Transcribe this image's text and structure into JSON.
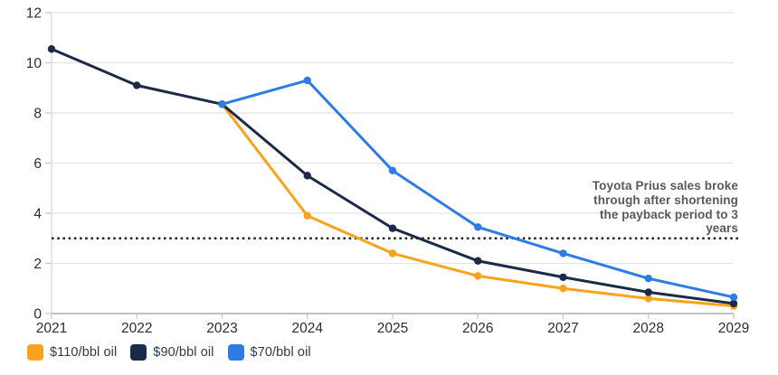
{
  "chart_data": {
    "type": "line",
    "title": "",
    "xlabel": "",
    "ylabel": "",
    "categories": [
      "2021",
      "2022",
      "2023",
      "2024",
      "2025",
      "2026",
      "2027",
      "2028",
      "2029"
    ],
    "series": [
      {
        "name": "$110/bbl oil",
        "color": "#F9A21C",
        "values": [
          null,
          null,
          8.35,
          3.9,
          2.4,
          1.5,
          1.0,
          0.6,
          0.3
        ]
      },
      {
        "name": "$90/bbl oil",
        "color": "#1B2B47",
        "values": [
          10.55,
          9.1,
          8.35,
          5.5,
          3.4,
          2.1,
          1.45,
          0.85,
          0.4
        ]
      },
      {
        "name": "$70/bbl oil",
        "color": "#2D7CE6",
        "values": [
          null,
          null,
          8.35,
          9.3,
          5.7,
          3.45,
          2.4,
          1.4,
          0.65
        ]
      }
    ],
    "ylim": [
      0,
      12
    ],
    "ytick_step": 2,
    "yticks": [
      0,
      2,
      4,
      6,
      8,
      10,
      12
    ],
    "grid": "horizontal",
    "legend_position": "bottom-left",
    "reference_line": {
      "value": 3,
      "style": "dotted",
      "color": "#26272b"
    },
    "annotation": "Toyota Prius sales broke\nthrough after shortening\nthe payback period to 3\nyears"
  },
  "colors": {
    "gridline": "#e4e4e4",
    "axis_line": "#9c9c9c",
    "y_axis_line": "#d9d9d9",
    "tick_mark": "#c8c8c8",
    "tick_label": "#2d2d2d",
    "annotation_text": "#58595b"
  }
}
